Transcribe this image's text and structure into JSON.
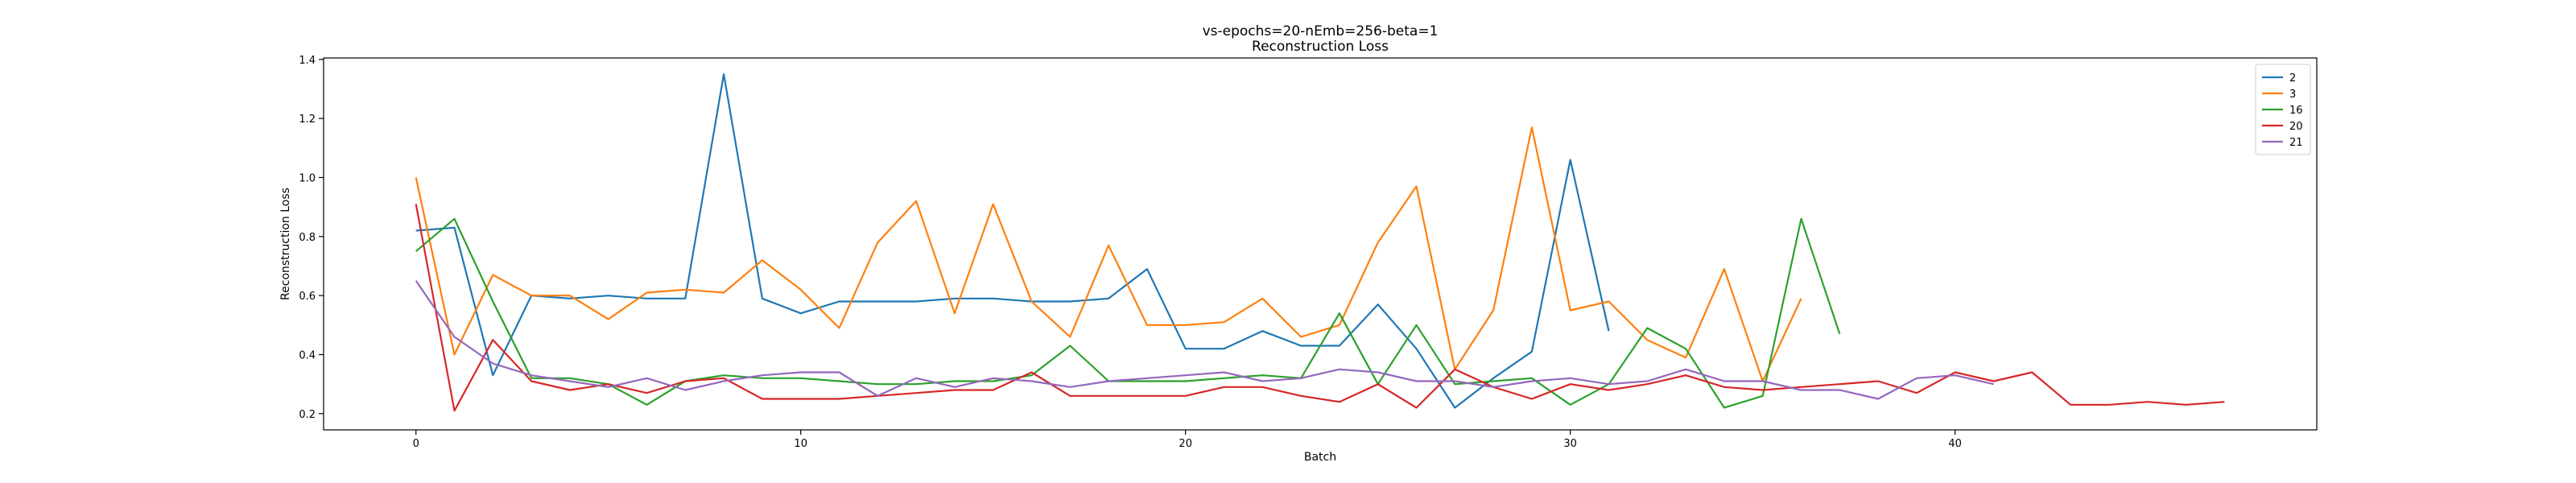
{
  "chart_data": {
    "type": "line",
    "title": "vs-epochs=20-nEmb=256-beta=1",
    "subtitle": "Reconstruction Loss",
    "xlabel": "Batch",
    "ylabel": "Reconstruction Loss",
    "xlim": [
      -2.4,
      49.4
    ],
    "ylim": [
      0.145,
      1.405
    ],
    "xticks": [
      0,
      10,
      20,
      30,
      40
    ],
    "yticks": [
      0.2,
      0.4,
      0.6,
      0.8,
      1.0,
      1.2,
      1.4
    ],
    "ytick_labels": [
      "0.2",
      "0.4",
      "0.6",
      "0.8",
      "1.0",
      "1.2",
      "1.4"
    ],
    "grid": false,
    "legend_position": "top-right",
    "series": [
      {
        "name": "2",
        "color": "#1f77b4",
        "values": [
          0.82,
          0.83,
          0.33,
          0.6,
          0.59,
          0.6,
          0.59,
          0.59,
          1.35,
          0.59,
          0.54,
          0.58,
          0.58,
          0.58,
          0.59,
          0.59,
          0.58,
          0.58,
          0.59,
          0.69,
          0.42,
          0.42,
          0.48,
          0.43,
          0.43,
          0.57,
          0.42,
          0.22,
          0.32,
          0.41,
          1.06,
          0.48
        ]
      },
      {
        "name": "3",
        "color": "#ff7f0e",
        "values": [
          1.0,
          0.4,
          0.67,
          0.6,
          0.6,
          0.52,
          0.61,
          0.62,
          0.61,
          0.72,
          0.62,
          0.49,
          0.78,
          0.92,
          0.54,
          0.91,
          0.58,
          0.46,
          0.77,
          0.5,
          0.5,
          0.51,
          0.59,
          0.46,
          0.5,
          0.78,
          0.97,
          0.35,
          0.55,
          1.17,
          0.55,
          0.58,
          0.45,
          0.39,
          0.69,
          0.31,
          0.59
        ]
      },
      {
        "name": "16",
        "color": "#2ca02c",
        "values": [
          0.75,
          0.86,
          0.58,
          0.32,
          0.32,
          0.3,
          0.23,
          0.31,
          0.33,
          0.32,
          0.32,
          0.31,
          0.3,
          0.3,
          0.31,
          0.31,
          0.33,
          0.43,
          0.31,
          0.31,
          0.31,
          0.32,
          0.33,
          0.32,
          0.54,
          0.3,
          0.5,
          0.3,
          0.31,
          0.32,
          0.23,
          0.3,
          0.49,
          0.42,
          0.22,
          0.26,
          0.86,
          0.47
        ]
      },
      {
        "name": "20",
        "color": "#d62728",
        "values": [
          0.91,
          0.21,
          0.45,
          0.31,
          0.28,
          0.3,
          0.27,
          0.31,
          0.32,
          0.25,
          0.25,
          0.25,
          0.26,
          0.27,
          0.28,
          0.28,
          0.34,
          0.26,
          0.26,
          0.26,
          0.26,
          0.29,
          0.29,
          0.26,
          0.24,
          0.3,
          0.22,
          0.35,
          0.29,
          0.25,
          0.3,
          0.28,
          0.3,
          0.33,
          0.29,
          0.28,
          0.29,
          0.3,
          0.31,
          0.27,
          0.34,
          0.31,
          0.34,
          0.23,
          0.23,
          0.24,
          0.23,
          0.24
        ]
      },
      {
        "name": "21",
        "color": "#9467bd",
        "values": [
          0.65,
          0.46,
          0.37,
          0.33,
          0.31,
          0.29,
          0.32,
          0.28,
          0.31,
          0.33,
          0.34,
          0.34,
          0.26,
          0.32,
          0.29,
          0.32,
          0.31,
          0.29,
          0.31,
          0.32,
          0.33,
          0.34,
          0.31,
          0.32,
          0.35,
          0.34,
          0.31,
          0.31,
          0.29,
          0.31,
          0.32,
          0.3,
          0.31,
          0.35,
          0.31,
          0.31,
          0.28,
          0.28,
          0.25,
          0.32,
          0.33,
          0.3
        ]
      }
    ]
  }
}
